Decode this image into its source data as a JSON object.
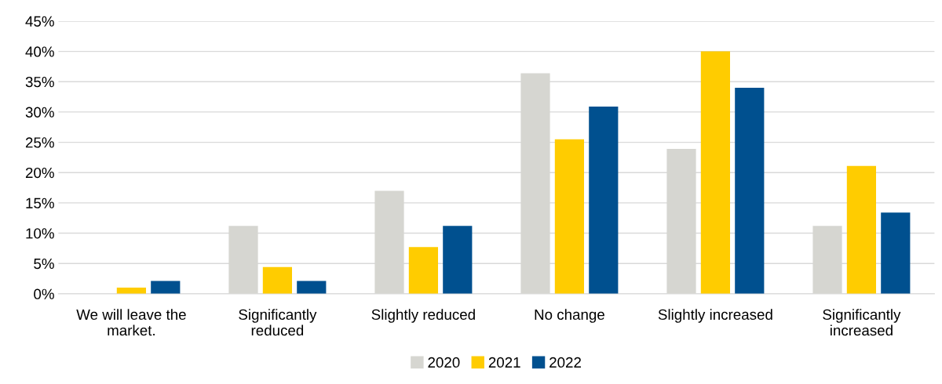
{
  "chart_data": {
    "type": "bar",
    "categories": [
      "We will leave the\nmarket.",
      "Significantly\nreduced",
      "Slightly reduced",
      "No change",
      "Slightly increased",
      "Significantly\nincreased"
    ],
    "series": [
      {
        "name": "2020",
        "color": "#d6d6d1",
        "values": [
          0,
          11.2,
          17.0,
          36.4,
          23.9,
          11.2
        ]
      },
      {
        "name": "2021",
        "color": "#ffcc00",
        "values": [
          1.0,
          4.4,
          7.7,
          25.5,
          40.0,
          21.1
        ]
      },
      {
        "name": "2022",
        "color": "#00508f",
        "values": [
          2.1,
          2.1,
          11.2,
          30.9,
          34.0,
          13.4
        ]
      }
    ],
    "ylim": [
      0,
      45
    ],
    "yticks": [
      {
        "value": 0,
        "label": "0%"
      },
      {
        "value": 5,
        "label": "5%"
      },
      {
        "value": 10,
        "label": "10%"
      },
      {
        "value": 15,
        "label": "15%"
      },
      {
        "value": 20,
        "label": "20%"
      },
      {
        "value": 25,
        "label": "25%"
      },
      {
        "value": 30,
        "label": "30%"
      },
      {
        "value": 35,
        "label": "35%"
      },
      {
        "value": 40,
        "label": "40%"
      },
      {
        "value": 45,
        "label": "45%"
      }
    ],
    "grid": "y",
    "legend": "bottom"
  }
}
